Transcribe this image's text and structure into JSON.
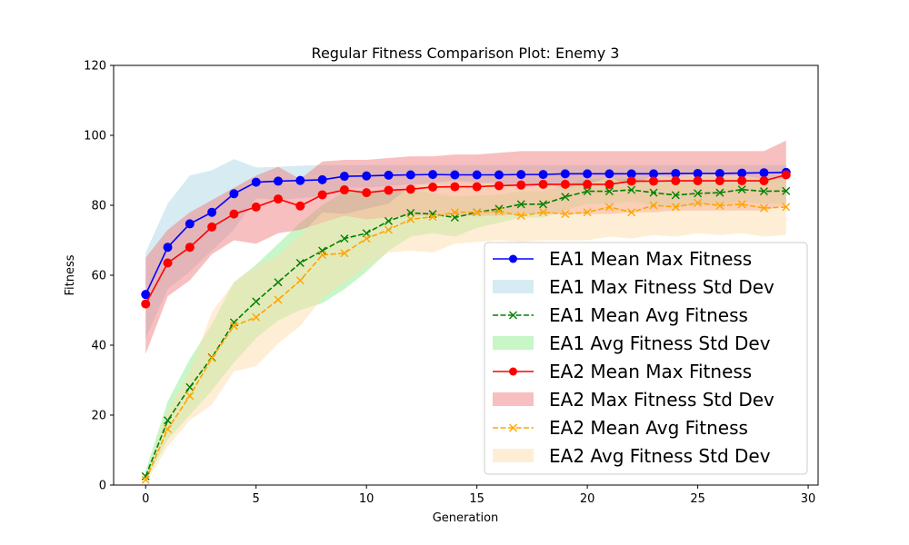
{
  "chart_data": {
    "type": "line",
    "title": "Regular Fitness Comparison Plot: Enemy 3",
    "xlabel": "Generation",
    "ylabel": "Fitness",
    "xlim": [
      -1.45,
      30.45
    ],
    "ylim": [
      0,
      120
    ],
    "xticks": [
      0,
      5,
      10,
      15,
      20,
      25,
      30
    ],
    "yticks": [
      0,
      20,
      40,
      60,
      80,
      100,
      120
    ],
    "grid": false,
    "legend_position": "lower-right",
    "x": [
      0,
      1,
      2,
      3,
      4,
      5,
      6,
      7,
      8,
      9,
      10,
      11,
      12,
      13,
      14,
      15,
      16,
      17,
      18,
      19,
      20,
      21,
      22,
      23,
      24,
      25,
      26,
      27,
      28,
      29
    ],
    "series": [
      {
        "name": "EA1 Mean Max Fitness",
        "kind": "line",
        "color": "#0000ff",
        "marker": "circle",
        "dash": "solid",
        "values": [
          54.5,
          68.0,
          74.7,
          78.0,
          83.3,
          86.6,
          86.9,
          87.1,
          87.3,
          88.3,
          88.4,
          88.6,
          88.7,
          88.8,
          88.7,
          88.7,
          88.7,
          88.8,
          88.8,
          89.0,
          89.0,
          89.0,
          89.0,
          89.0,
          89.1,
          89.1,
          89.1,
          89.2,
          89.3,
          89.4
        ]
      },
      {
        "name": "EA1 Max Fitness Std Dev",
        "kind": "band",
        "color": "#add8e6",
        "opacity": 0.5,
        "lower": [
          42.0,
          56.0,
          61.0,
          67.0,
          73.0,
          82.0,
          81.5,
          82.0,
          82.5,
          85.0,
          85.0,
          85.5,
          86.0,
          86.0,
          86.0,
          86.0,
          86.0,
          86.0,
          86.0,
          86.5,
          86.5,
          86.5,
          86.5,
          86.5,
          86.5,
          86.5,
          86.5,
          86.5,
          86.5,
          86.5
        ],
        "upper": [
          66.5,
          80.5,
          88.5,
          90.0,
          93.2,
          90.8,
          91.0,
          91.3,
          91.5,
          91.5,
          91.5,
          91.5,
          91.5,
          91.5,
          91.5,
          91.5,
          91.5,
          91.5,
          91.5,
          91.5,
          91.5,
          91.5,
          91.5,
          91.5,
          91.5,
          91.5,
          91.5,
          91.5,
          91.5,
          91.5
        ]
      },
      {
        "name": "EA1 Mean Avg Fitness",
        "kind": "line",
        "color": "#008000",
        "marker": "x",
        "dash": "dashed",
        "values": [
          2.5,
          18.5,
          28.0,
          36.5,
          46.5,
          52.5,
          58.0,
          63.5,
          67.0,
          70.5,
          72.0,
          75.5,
          77.8,
          77.5,
          76.5,
          78.0,
          79.0,
          80.3,
          80.3,
          82.4,
          84.0,
          84.0,
          84.4,
          83.6,
          82.9,
          83.4,
          83.6,
          84.5,
          84.0,
          84.1
        ]
      },
      {
        "name": "EA1 Avg Fitness Std Dev",
        "kind": "band",
        "color": "#90ee90",
        "opacity": 0.5,
        "lower": [
          1.0,
          13.0,
          20.0,
          27.0,
          35.0,
          42.0,
          47.0,
          50.0,
          52.0,
          56.0,
          61.0,
          67.0,
          71.0,
          72.0,
          71.0,
          73.5,
          75.0,
          76.5,
          76.5,
          78.5,
          80.5,
          80.5,
          81.0,
          80.0,
          79.5,
          80.0,
          80.0,
          81.0,
          80.5,
          80.5
        ],
        "upper": [
          4.0,
          24.0,
          36.0,
          46.0,
          58.0,
          63.0,
          69.0,
          75.0,
          80.0,
          84.0,
          84.0,
          84.0,
          84.5,
          83.5,
          82.5,
          82.8,
          83.0,
          84.0,
          84.0,
          86.0,
          87.5,
          87.5,
          87.8,
          87.2,
          86.5,
          86.8,
          87.2,
          88.0,
          87.5,
          87.7
        ]
      },
      {
        "name": "EA2 Mean Max Fitness",
        "kind": "line",
        "color": "#ff0000",
        "marker": "circle",
        "dash": "solid",
        "values": [
          51.8,
          63.5,
          68.0,
          73.8,
          77.5,
          79.5,
          81.8,
          79.8,
          83.0,
          84.4,
          83.6,
          84.3,
          84.6,
          85.2,
          85.3,
          85.3,
          85.6,
          85.8,
          86.0,
          86.0,
          86.0,
          86.0,
          86.9,
          86.9,
          87.0,
          87.0,
          87.0,
          87.0,
          87.0,
          88.7
        ]
      },
      {
        "name": "EA2 Max Fitness Std Dev",
        "kind": "band",
        "color": "#f08080",
        "opacity": 0.5,
        "lower": [
          37.5,
          54.0,
          58.5,
          66.0,
          70.0,
          69.0,
          72.0,
          73.0,
          75.0,
          77.0,
          76.0,
          76.5,
          77.0,
          77.0,
          77.0,
          77.0,
          77.0,
          77.5,
          77.5,
          77.5,
          77.5,
          77.5,
          78.0,
          78.0,
          78.5,
          78.5,
          78.5,
          78.5,
          78.5,
          80.0
        ],
        "upper": [
          65.0,
          73.0,
          78.0,
          81.5,
          85.0,
          88.5,
          91.0,
          87.5,
          92.5,
          93.0,
          93.0,
          93.5,
          94.0,
          94.0,
          94.5,
          94.5,
          95.0,
          95.5,
          95.5,
          95.5,
          95.5,
          95.5,
          95.5,
          95.5,
          95.5,
          95.5,
          95.5,
          95.5,
          95.5,
          98.5
        ]
      },
      {
        "name": "EA2 Mean Avg Fitness",
        "kind": "line",
        "color": "#ffa500",
        "marker": "x",
        "dash": "dashed",
        "values": [
          1.5,
          16.0,
          25.5,
          36.3,
          45.5,
          48.0,
          53.0,
          58.5,
          65.8,
          66.3,
          70.5,
          73.0,
          76.0,
          76.7,
          78.0,
          78.0,
          78.3,
          77.0,
          78.0,
          77.5,
          78.0,
          79.5,
          78.0,
          80.0,
          79.5,
          80.7,
          79.9,
          80.3,
          79.2,
          79.5
        ]
      },
      {
        "name": "EA2 Avg Fitness Std Dev",
        "kind": "band",
        "color": "#ffdead",
        "opacity": 0.5,
        "lower": [
          0.5,
          11.0,
          18.5,
          23.0,
          32.5,
          34.0,
          40.5,
          45.5,
          53.5,
          58.0,
          62.5,
          66.5,
          67.0,
          66.5,
          69.0,
          69.5,
          70.0,
          69.5,
          70.0,
          70.0,
          70.0,
          71.0,
          70.5,
          71.5,
          71.0,
          72.0,
          71.5,
          72.0,
          71.0,
          71.5
        ],
        "upper": [
          2.5,
          21.0,
          32.5,
          49.5,
          58.0,
          62.5,
          65.5,
          71.5,
          78.0,
          77.5,
          79.0,
          80.5,
          85.5,
          86.5,
          87.0,
          86.5,
          86.5,
          84.5,
          86.0,
          85.0,
          86.0,
          88.0,
          85.5,
          88.5,
          88.0,
          89.5,
          88.5,
          88.5,
          87.5,
          87.5
        ]
      }
    ],
    "legend_order": [
      0,
      1,
      2,
      3,
      4,
      5,
      6,
      7
    ]
  }
}
